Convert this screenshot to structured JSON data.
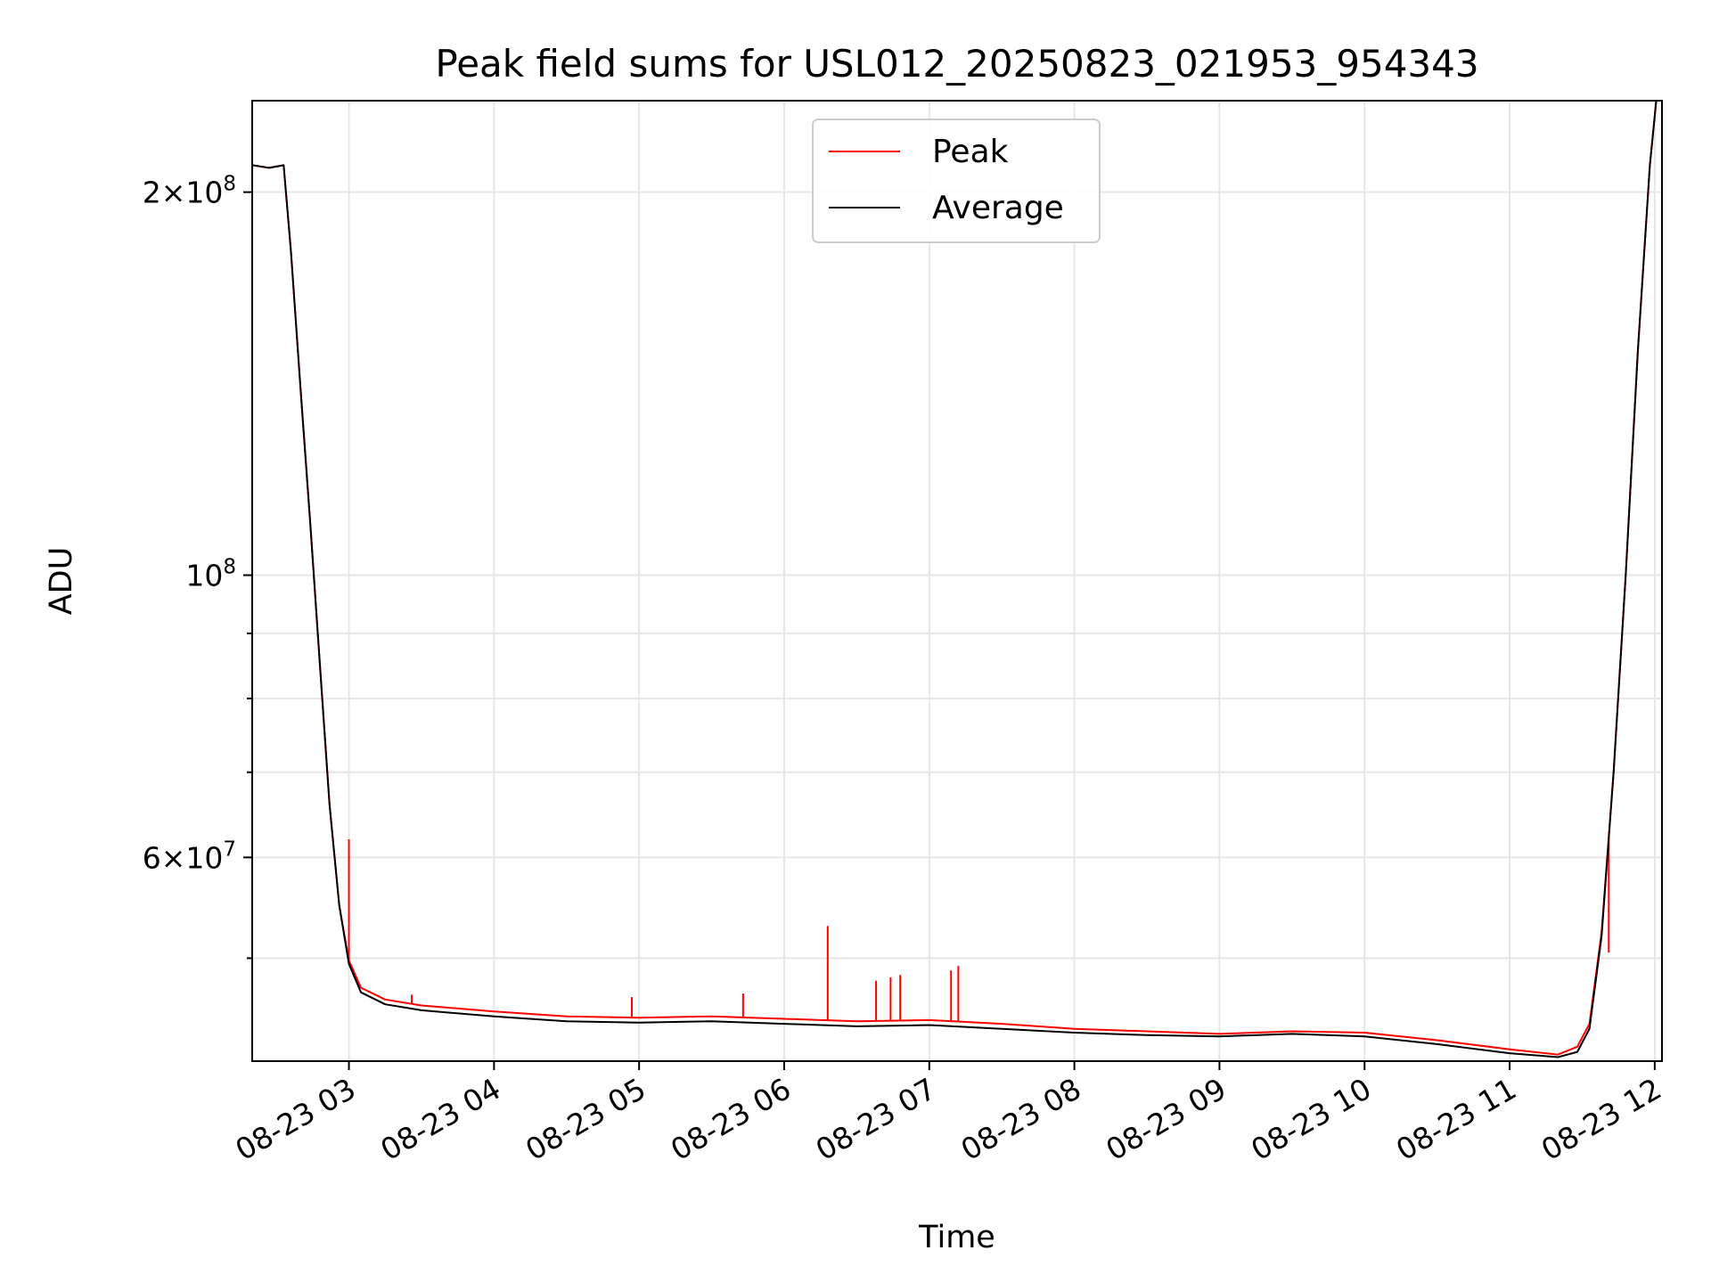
{
  "chart_data": {
    "type": "line",
    "title": "Peak field sums for USL012_20250823_021953_954343",
    "xlabel": "Time",
    "ylabel": "ADU",
    "yscale": "log",
    "grid": true,
    "legend_position": "top-center",
    "xlim": [
      "2025-08-23T02:20",
      "2025-08-23T12:03"
    ],
    "ylim": [
      41500000,
      236000000
    ],
    "x_ticks": [
      {
        "t": "2025-08-23T03:00",
        "label": "08-23 03"
      },
      {
        "t": "2025-08-23T04:00",
        "label": "08-23 04"
      },
      {
        "t": "2025-08-23T05:00",
        "label": "08-23 05"
      },
      {
        "t": "2025-08-23T06:00",
        "label": "08-23 06"
      },
      {
        "t": "2025-08-23T07:00",
        "label": "08-23 07"
      },
      {
        "t": "2025-08-23T08:00",
        "label": "08-23 08"
      },
      {
        "t": "2025-08-23T09:00",
        "label": "08-23 09"
      },
      {
        "t": "2025-08-23T10:00",
        "label": "08-23 10"
      },
      {
        "t": "2025-08-23T11:00",
        "label": "08-23 11"
      },
      {
        "t": "2025-08-23T12:00",
        "label": "08-23 12"
      }
    ],
    "y_major_ticks": [
      {
        "v": 60000000,
        "mant": "6",
        "exp": "7"
      },
      {
        "v": 100000000,
        "mant": "",
        "exp": "8"
      },
      {
        "v": 200000000,
        "mant": "2",
        "exp": "8"
      }
    ],
    "y_minor_ticks": [
      50000000,
      70000000,
      80000000,
      90000000
    ],
    "series": [
      {
        "name": "Average",
        "color": "#000000",
        "points": [
          [
            "2025-08-23T02:20",
            210000000
          ],
          [
            "2025-08-23T02:27",
            209000000
          ],
          [
            "2025-08-23T02:33",
            210000000
          ],
          [
            "2025-08-23T02:36",
            180000000
          ],
          [
            "2025-08-23T02:40",
            140000000
          ],
          [
            "2025-08-23T02:44",
            110000000
          ],
          [
            "2025-08-23T02:48",
            85000000
          ],
          [
            "2025-08-23T02:52",
            66000000
          ],
          [
            "2025-08-23T02:56",
            55000000
          ],
          [
            "2025-08-23T03:00",
            49500000
          ],
          [
            "2025-08-23T03:05",
            47000000
          ],
          [
            "2025-08-23T03:15",
            46000000
          ],
          [
            "2025-08-23T03:30",
            45500000
          ],
          [
            "2025-08-23T04:00",
            45000000
          ],
          [
            "2025-08-23T04:30",
            44600000
          ],
          [
            "2025-08-23T05:00",
            44500000
          ],
          [
            "2025-08-23T05:30",
            44600000
          ],
          [
            "2025-08-23T06:00",
            44400000
          ],
          [
            "2025-08-23T06:30",
            44200000
          ],
          [
            "2025-08-23T07:00",
            44300000
          ],
          [
            "2025-08-23T07:30",
            44000000
          ],
          [
            "2025-08-23T08:00",
            43700000
          ],
          [
            "2025-08-23T08:30",
            43500000
          ],
          [
            "2025-08-23T09:00",
            43400000
          ],
          [
            "2025-08-23T09:30",
            43600000
          ],
          [
            "2025-08-23T10:00",
            43400000
          ],
          [
            "2025-08-23T10:30",
            42800000
          ],
          [
            "2025-08-23T11:00",
            42100000
          ],
          [
            "2025-08-23T11:20",
            41800000
          ],
          [
            "2025-08-23T11:28",
            42200000
          ],
          [
            "2025-08-23T11:33",
            44000000
          ],
          [
            "2025-08-23T11:38",
            52000000
          ],
          [
            "2025-08-23T11:43",
            70000000
          ],
          [
            "2025-08-23T11:48",
            100000000
          ],
          [
            "2025-08-23T11:53",
            150000000
          ],
          [
            "2025-08-23T11:58",
            210000000
          ],
          [
            "2025-08-23T12:01",
            240000000
          ]
        ]
      },
      {
        "name": "Peak",
        "color": "#ff0000",
        "points": [
          [
            "2025-08-23T02:20",
            210000000
          ],
          [
            "2025-08-23T02:27",
            209000000
          ],
          [
            "2025-08-23T02:33",
            210000000
          ],
          [
            "2025-08-23T02:36",
            180000000
          ],
          [
            "2025-08-23T02:40",
            140000000
          ],
          [
            "2025-08-23T02:44",
            110000000
          ],
          [
            "2025-08-23T02:48",
            85000000
          ],
          [
            "2025-08-23T02:52",
            66000000
          ],
          [
            "2025-08-23T02:56",
            55000000
          ],
          [
            "2025-08-23T03:00",
            49800000
          ],
          [
            "2025-08-23T03:05",
            47400000
          ],
          [
            "2025-08-23T03:15",
            46400000
          ],
          [
            "2025-08-23T03:30",
            45900000
          ],
          [
            "2025-08-23T04:00",
            45400000
          ],
          [
            "2025-08-23T04:30",
            45000000
          ],
          [
            "2025-08-23T05:00",
            44900000
          ],
          [
            "2025-08-23T05:30",
            45000000
          ],
          [
            "2025-08-23T06:00",
            44800000
          ],
          [
            "2025-08-23T06:30",
            44600000
          ],
          [
            "2025-08-23T07:00",
            44700000
          ],
          [
            "2025-08-23T07:30",
            44400000
          ],
          [
            "2025-08-23T08:00",
            44000000
          ],
          [
            "2025-08-23T08:30",
            43800000
          ],
          [
            "2025-08-23T09:00",
            43600000
          ],
          [
            "2025-08-23T09:30",
            43800000
          ],
          [
            "2025-08-23T10:00",
            43700000
          ],
          [
            "2025-08-23T10:30",
            43100000
          ],
          [
            "2025-08-23T11:00",
            42400000
          ],
          [
            "2025-08-23T11:20",
            42000000
          ],
          [
            "2025-08-23T11:28",
            42600000
          ],
          [
            "2025-08-23T11:33",
            44400000
          ],
          [
            "2025-08-23T11:38",
            52400000
          ],
          [
            "2025-08-23T11:43",
            70000000
          ],
          [
            "2025-08-23T11:48",
            100000000
          ],
          [
            "2025-08-23T11:53",
            150000000
          ],
          [
            "2025-08-23T11:58",
            210000000
          ],
          [
            "2025-08-23T12:01",
            240000000
          ]
        ],
        "spikes": [
          [
            "2025-08-23T03:00",
            62000000
          ],
          [
            "2025-08-23T03:26",
            46800000
          ],
          [
            "2025-08-23T04:57",
            46600000
          ],
          [
            "2025-08-23T05:43",
            46900000
          ],
          [
            "2025-08-23T06:18",
            53000000
          ],
          [
            "2025-08-23T06:38",
            48000000
          ],
          [
            "2025-08-23T06:44",
            48300000
          ],
          [
            "2025-08-23T06:48",
            48500000
          ],
          [
            "2025-08-23T07:09",
            48900000
          ],
          [
            "2025-08-23T07:12",
            49300000
          ],
          [
            "2025-08-23T11:41",
            50500000
          ]
        ]
      }
    ]
  }
}
